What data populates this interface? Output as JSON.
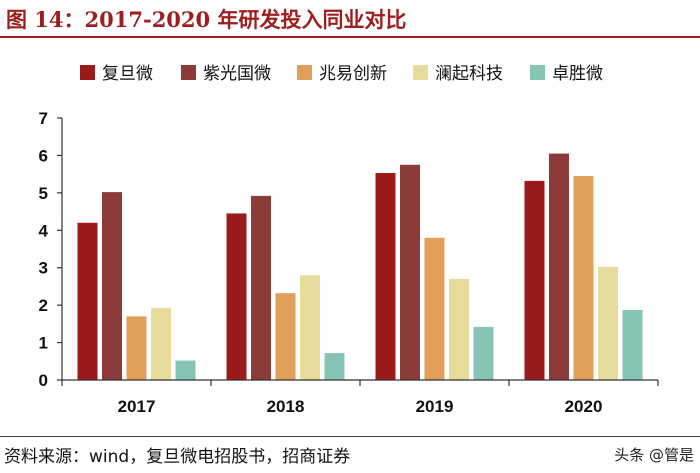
{
  "title": "图 14：2017-2020 年研发投入同业对比",
  "source": "资料来源：wind，复旦微电招股书，招商证券",
  "watermark": "头条 @管是",
  "chart_data": {
    "type": "bar",
    "categories": [
      "2017",
      "2018",
      "2019",
      "2020"
    ],
    "series": [
      {
        "name": "复旦微",
        "color": "#9b1b1b",
        "values": [
          4.2,
          4.45,
          5.53,
          5.32
        ]
      },
      {
        "name": "紫光国微",
        "color": "#8c3a3a",
        "values": [
          5.02,
          4.92,
          5.75,
          6.05
        ]
      },
      {
        "name": "兆易创新",
        "color": "#e1a05a",
        "values": [
          1.7,
          2.32,
          3.8,
          5.45
        ]
      },
      {
        "name": "澜起科技",
        "color": "#e6dc9c",
        "values": [
          1.92,
          2.8,
          2.7,
          3.02
        ]
      },
      {
        "name": "卓胜微",
        "color": "#86c5b5",
        "values": [
          0.52,
          0.72,
          1.42,
          1.87
        ]
      }
    ],
    "yticks": [
      "0",
      "1",
      "2",
      "3",
      "4",
      "5",
      "6",
      "7"
    ],
    "ylim": [
      0,
      7
    ],
    "legend_position": "top",
    "grid": false
  }
}
